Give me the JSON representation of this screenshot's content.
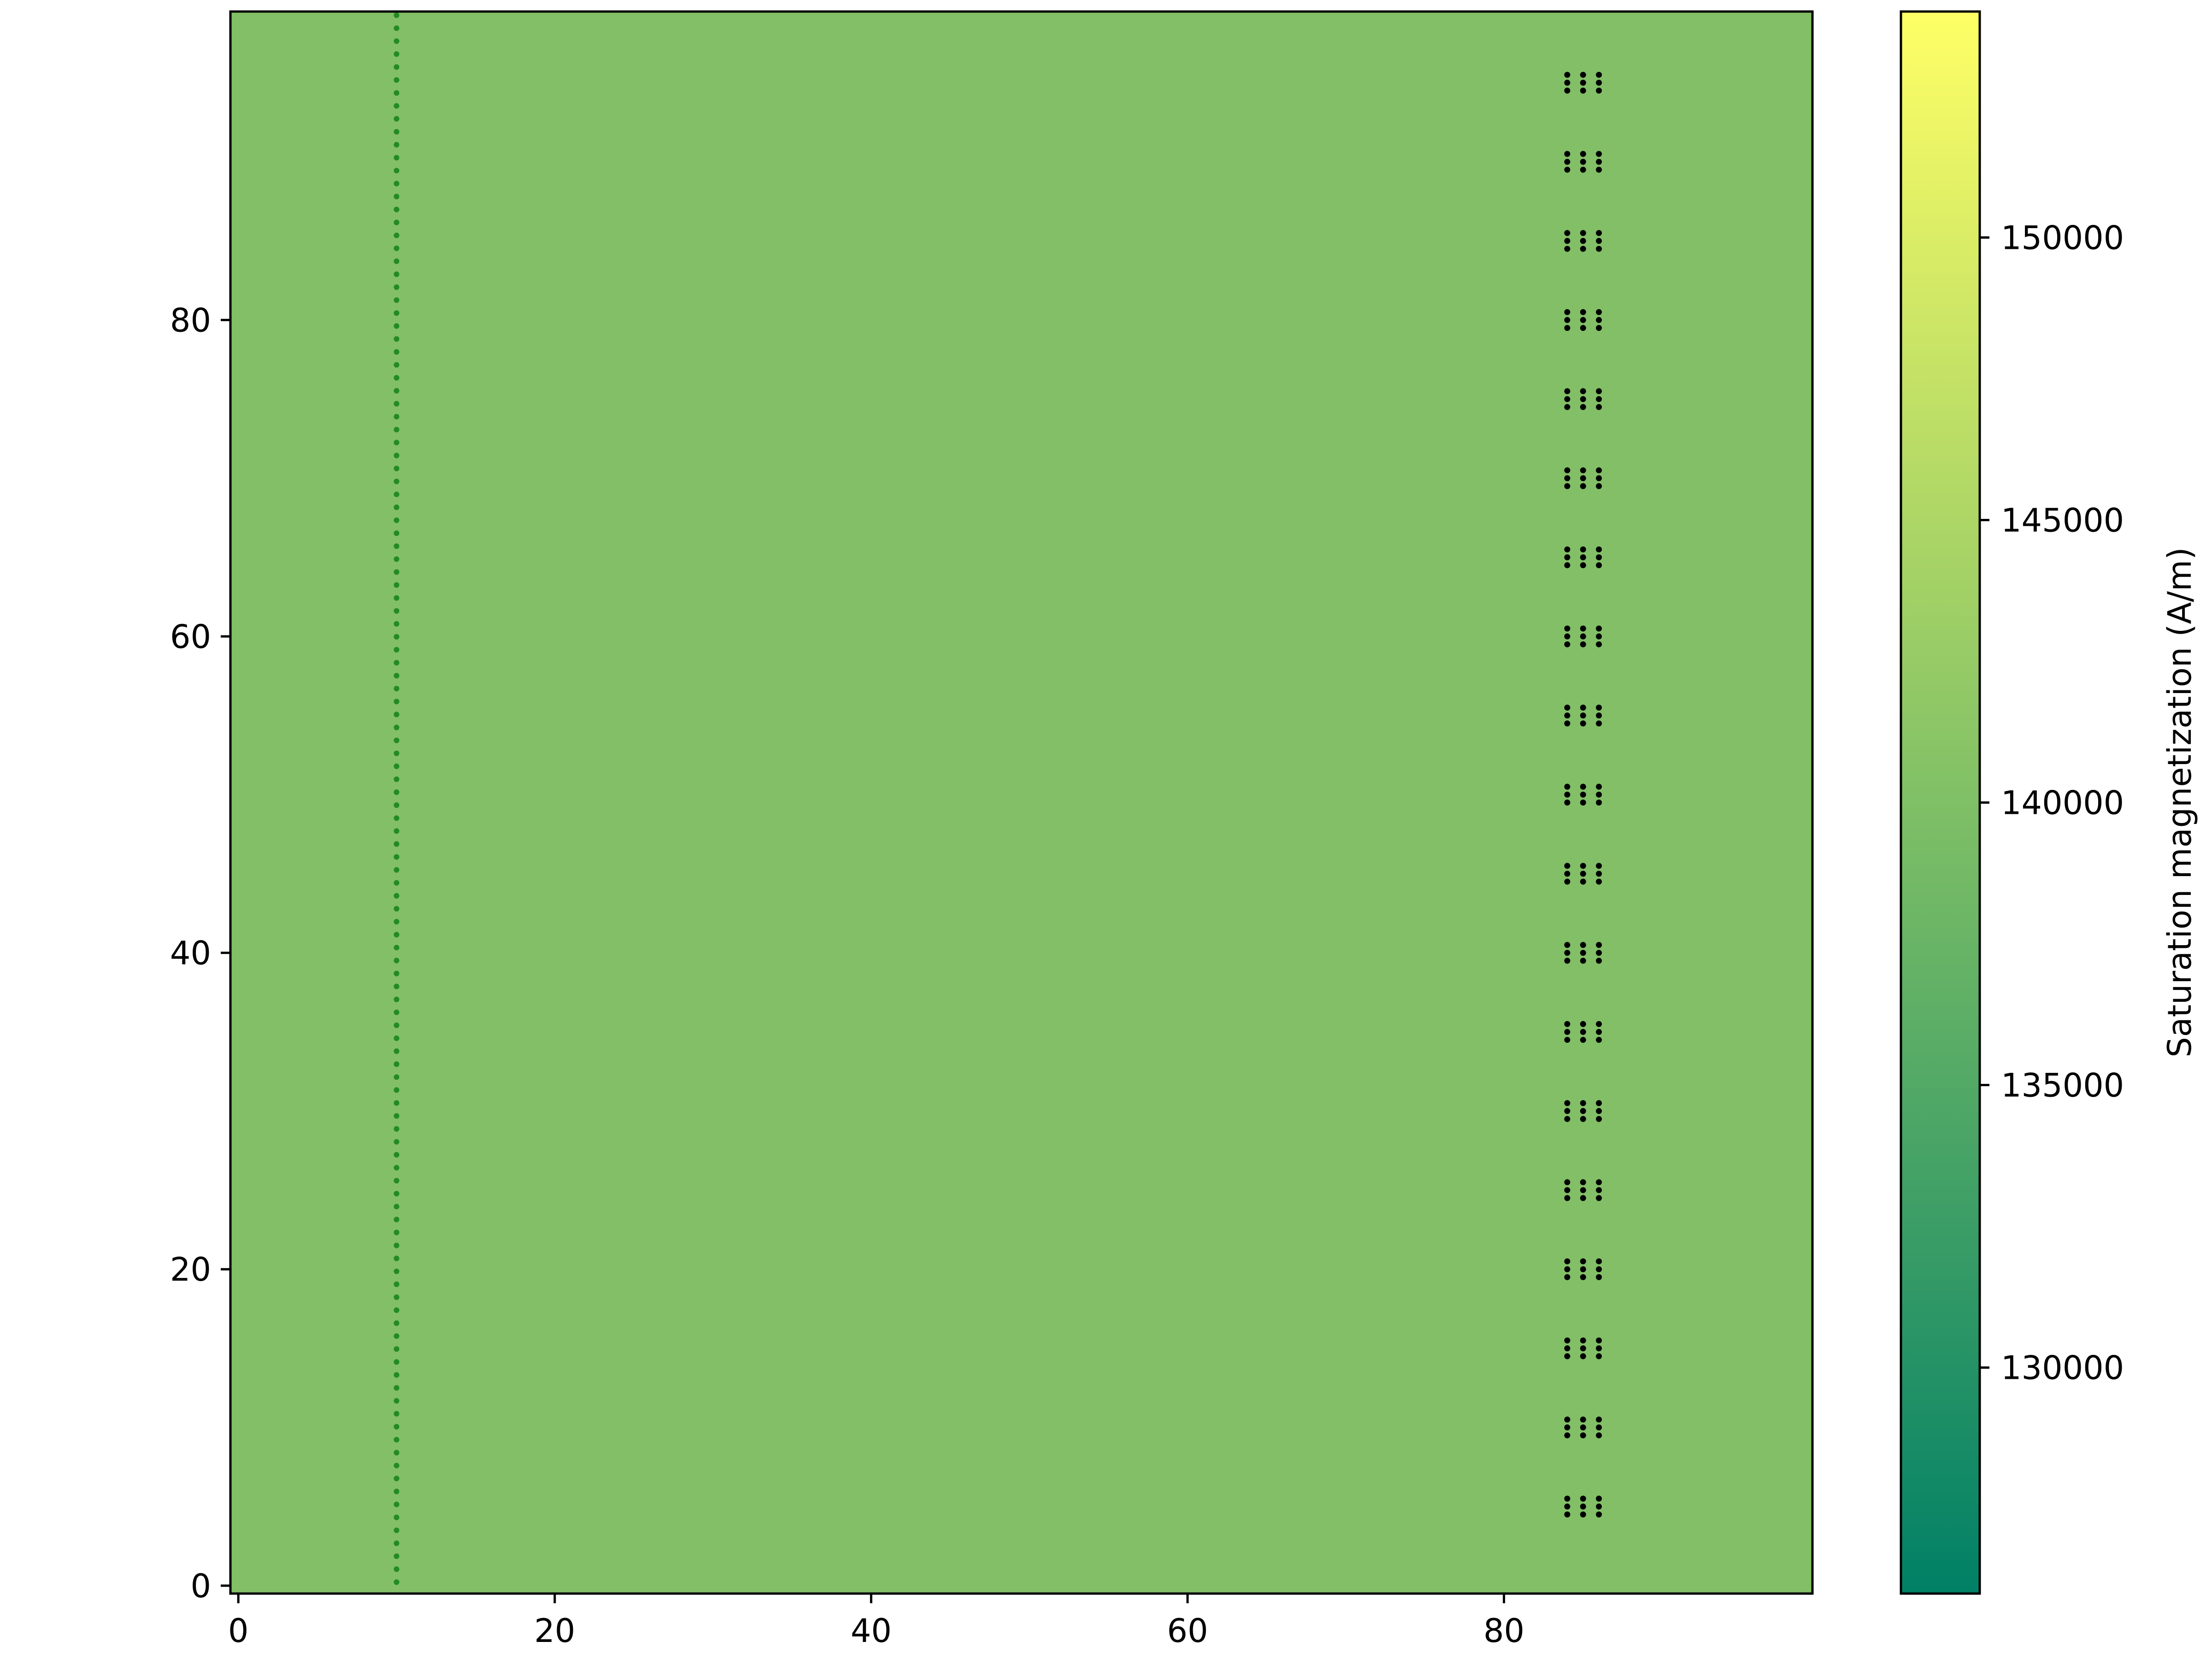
{
  "chart_data": {
    "type": "heatmap",
    "title": "",
    "xlabel": "",
    "ylabel": "",
    "xlim": [
      -0.5,
      99.5
    ],
    "ylim": [
      -0.5,
      99.5
    ],
    "x_ticks": [
      0,
      20,
      40,
      60,
      80
    ],
    "x_tick_labels": [
      "0",
      "20",
      "40",
      "60",
      "80"
    ],
    "y_ticks": [
      0,
      20,
      40,
      60,
      80
    ],
    "y_tick_labels": [
      "0",
      "20",
      "40",
      "60",
      "80"
    ],
    "grid": false,
    "field_value": 140000,
    "colorbar": {
      "label": "Saturation magnetization (A/m)",
      "colormap": "summer",
      "range": [
        126000,
        154000
      ],
      "ticks": [
        130000,
        135000,
        140000,
        145000,
        150000
      ],
      "tick_labels": [
        "130000",
        "135000",
        "140000",
        "145000",
        "150000"
      ],
      "color_low": "#008066",
      "color_high": "#ffff66"
    },
    "field_color": "#82bf66",
    "overlays": [
      {
        "kind": "dotted-line",
        "color": "#228b22",
        "x": 10,
        "y_range": [
          -0.5,
          99.5
        ]
      },
      {
        "kind": "dot-grid-clusters",
        "color": "#000000",
        "cluster_x": [
          84,
          85,
          86
        ],
        "cluster_y_offsets": [
          -0.5,
          0,
          0.5
        ],
        "cluster_centers_y": [
          5,
          10,
          15,
          20,
          25,
          30,
          35,
          40,
          45,
          50,
          55,
          60,
          65,
          70,
          75,
          80,
          85,
          90,
          95
        ]
      }
    ]
  }
}
